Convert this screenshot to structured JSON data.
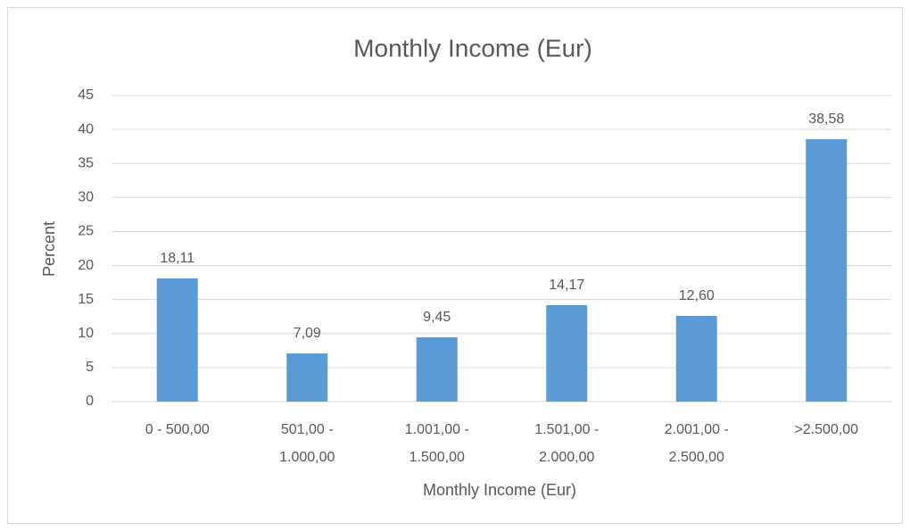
{
  "chart_data": {
    "type": "bar",
    "title": "Monthly Income (Eur)",
    "x_label": "Monthly Income (Eur)",
    "y_label": "Percent",
    "categories": [
      [
        "0 - 500,00"
      ],
      [
        "501,00 -",
        "1.000,00"
      ],
      [
        "1.001,00 -",
        "1.500,00"
      ],
      [
        "1.501,00 -",
        "2.000,00"
      ],
      [
        "2.001,00 -",
        "2.500,00"
      ],
      [
        ">2.500,00"
      ]
    ],
    "values": [
      18.11,
      7.09,
      9.45,
      14.17,
      12.6,
      38.58
    ],
    "value_labels": [
      "18,11",
      "7,09",
      "9,45",
      "14,17",
      "12,60",
      "38,58"
    ],
    "color": "#5b9bd5",
    "ylim": [
      0,
      45
    ],
    "yticks": [
      0,
      5,
      10,
      15,
      20,
      25,
      30,
      35,
      40,
      45
    ],
    "grid": true
  }
}
